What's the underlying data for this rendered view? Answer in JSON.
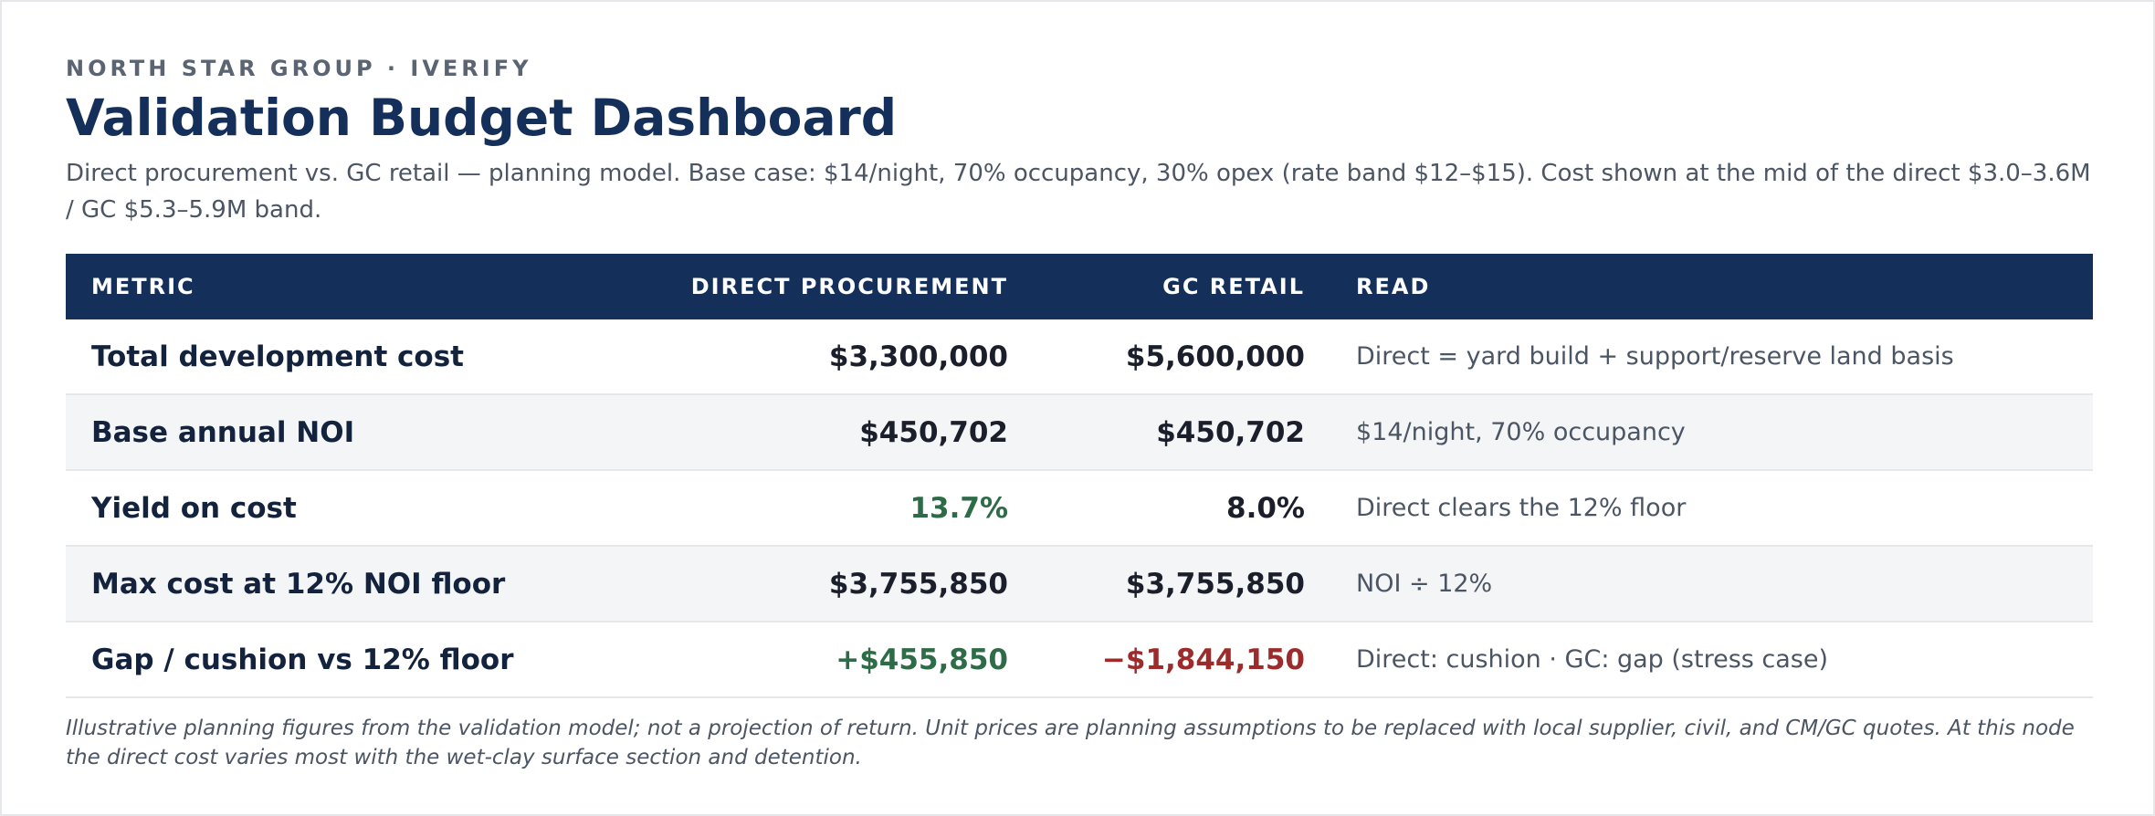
{
  "header": {
    "eyebrow": "NORTH STAR GROUP · IVERIFY",
    "title": "Validation Budget Dashboard",
    "subtitle": "Direct procurement vs. GC retail — planning model. Base case: $14/night, 70% occupancy, 30% opex (rate band $12–$15). Cost shown at the mid of the direct $3.0–3.6M / GC $5.3–5.9M band."
  },
  "table": {
    "columns": [
      "METRIC",
      "DIRECT PROCUREMENT",
      "GC RETAIL",
      "READ"
    ],
    "rows": [
      {
        "metric": "Total development cost",
        "direct": "$3,300,000",
        "gc": "$5,600,000",
        "read": "Direct = yard build + support/reserve land basis"
      },
      {
        "metric": "Base annual NOI",
        "direct": "$450,702",
        "gc": "$450,702",
        "read": "$14/night, 70% occupancy"
      },
      {
        "metric": "Yield on cost",
        "direct": "13.7%",
        "gc": "8.0%",
        "read": "Direct clears the 12% floor"
      },
      {
        "metric": "Max cost at 12% NOI floor",
        "direct": "$3,755,850",
        "gc": "$3,755,850",
        "read": "NOI ÷ 12%"
      },
      {
        "metric": "Gap / cushion vs 12% floor",
        "direct": "+$455,850",
        "gc": "−$1,844,150",
        "read": "Direct: cushion · GC: gap (stress case)"
      }
    ]
  },
  "colors": {
    "header_bg": "#14305a",
    "positive": "#2e6b47",
    "negative": "#9e2b2b"
  },
  "footnote": "Illustrative planning figures from the validation model; not a projection of return. Unit prices are planning assumptions to be replaced with local supplier, civil, and CM/GC quotes. At this node the direct cost varies most with the wet-clay surface section and detention."
}
